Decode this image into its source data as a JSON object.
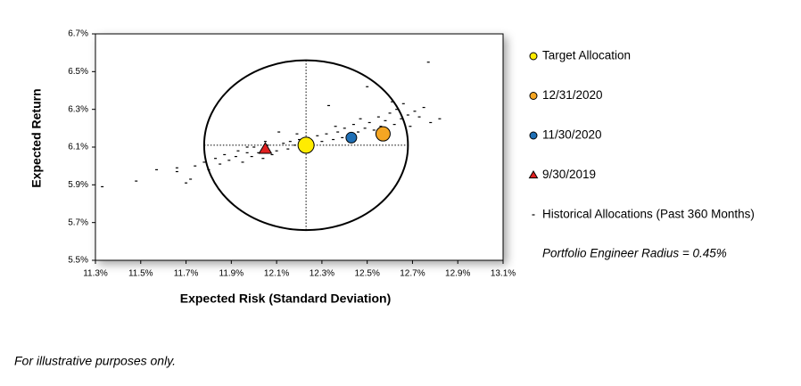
{
  "chart_data": {
    "type": "scatter",
    "x_label": "Expected Risk (Standard Deviation)",
    "y_label": "Expected Return",
    "footnote": "For illustrative purposes only.",
    "annotation": "Portfolio Engineer Radius = 0.45%",
    "radius": 0.45,
    "xlim": [
      11.3,
      13.1
    ],
    "ylim": [
      5.5,
      6.7
    ],
    "xticks": [
      {
        "value": 11.3,
        "label": "11.3%"
      },
      {
        "value": 11.5,
        "label": "11.5%"
      },
      {
        "value": 11.7,
        "label": "11.7%"
      },
      {
        "value": 11.9,
        "label": "11.9%"
      },
      {
        "value": 12.1,
        "label": "12.1%"
      },
      {
        "value": 12.3,
        "label": "12.3%"
      },
      {
        "value": 12.5,
        "label": "12.5%"
      },
      {
        "value": 12.7,
        "label": "12.7%"
      },
      {
        "value": 12.9,
        "label": "12.9%"
      },
      {
        "value": 13.1,
        "label": "13.1%"
      }
    ],
    "yticks": [
      {
        "value": 5.5,
        "label": "5.5%"
      },
      {
        "value": 5.7,
        "label": "5.7%"
      },
      {
        "value": 5.9,
        "label": "5.9%"
      },
      {
        "value": 6.1,
        "label": "6.1%"
      },
      {
        "value": 6.3,
        "label": "6.3%"
      },
      {
        "value": 6.5,
        "label": "6.5%"
      },
      {
        "value": 6.7,
        "label": "6.7%"
      }
    ],
    "series": [
      {
        "name": "Historical Allocations (Past 360 Months)",
        "color": "#000000",
        "marker": "dash",
        "x": [
          11.33,
          11.48,
          11.57,
          11.66,
          11.66,
          11.7,
          11.72,
          11.74,
          11.78,
          11.8,
          11.83,
          11.85,
          11.87,
          11.89,
          11.92,
          11.93,
          11.95,
          11.97,
          11.99,
          12.0,
          12.02,
          12.04,
          12.06,
          12.08,
          12.1,
          12.11,
          12.13,
          12.15,
          12.16,
          12.18,
          12.2,
          12.21,
          12.24,
          12.26,
          12.28,
          12.3,
          12.32,
          12.33,
          12.35,
          12.37,
          12.39,
          12.4,
          12.42,
          12.44,
          12.46,
          12.47,
          12.49,
          12.5,
          12.51,
          12.53,
          12.55,
          12.56,
          12.58,
          12.6,
          12.62,
          12.63,
          12.65,
          12.66,
          12.68,
          12.69,
          12.71,
          12.73,
          12.75,
          12.77,
          12.78,
          12.82,
          12.61,
          12.36,
          12.19,
          12.05,
          11.97
        ],
        "values": [
          5.89,
          5.92,
          5.98,
          5.97,
          5.99,
          5.91,
          5.93,
          6.0,
          6.02,
          5.98,
          6.04,
          6.01,
          6.06,
          6.03,
          6.05,
          6.08,
          6.02,
          6.07,
          6.05,
          6.1,
          6.07,
          6.04,
          6.11,
          6.06,
          6.08,
          6.18,
          6.12,
          6.09,
          6.13,
          6.11,
          6.14,
          6.08,
          6.15,
          6.12,
          6.16,
          6.13,
          6.17,
          6.32,
          6.14,
          6.18,
          6.15,
          6.2,
          6.17,
          6.22,
          6.18,
          6.25,
          6.2,
          6.42,
          6.23,
          6.19,
          6.26,
          6.21,
          6.24,
          6.28,
          6.22,
          6.3,
          6.25,
          6.33,
          6.27,
          6.21,
          6.29,
          6.26,
          6.31,
          6.55,
          6.23,
          6.25,
          6.34,
          6.21,
          6.17,
          6.13,
          6.1
        ]
      },
      {
        "name": "9/30/2019",
        "color": "#e02020",
        "marker": "triangle",
        "x": [
          12.05
        ],
        "values": [
          6.09
        ]
      },
      {
        "name": "11/30/2020",
        "color": "#1f6fb5",
        "marker": "circle",
        "x": [
          12.43
        ],
        "values": [
          6.15
        ]
      },
      {
        "name": "12/31/2020",
        "color": "#f5a623",
        "marker": "circle",
        "x": [
          12.57
        ],
        "values": [
          6.17
        ]
      },
      {
        "name": "Target Allocation",
        "color": "#ffec00",
        "marker": "circle",
        "x": [
          12.23
        ],
        "values": [
          6.11
        ]
      }
    ]
  }
}
